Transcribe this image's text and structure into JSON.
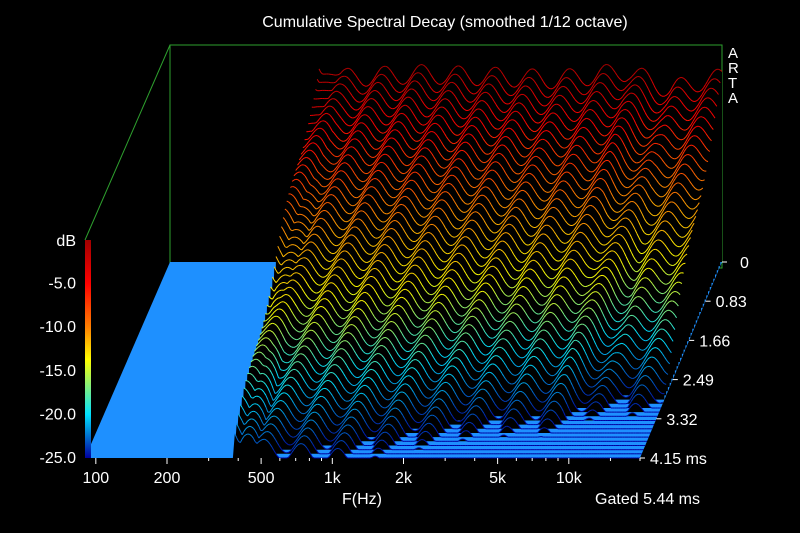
{
  "chart_data": {
    "type": "waterfall",
    "title": "Cumulative Spectral Decay (smoothed 1/12 octave)",
    "brand": "ARTA",
    "xlabel": "F(Hz)",
    "x_tick_labels": [
      "100",
      "200",
      "500",
      "1k",
      "2k",
      "5k",
      "10k"
    ],
    "x_tick_values": [
      100,
      200,
      500,
      1000,
      2000,
      5000,
      10000
    ],
    "xlim": [
      90,
      20000
    ],
    "x_scale": "log",
    "ylabel": "dB",
    "y_tick_labels": [
      "-5.0",
      "-10.0",
      "-15.0",
      "-20.0",
      "-25.0"
    ],
    "y_tick_values": [
      -5,
      -10,
      -15,
      -20,
      -25
    ],
    "ylim": [
      -25,
      0
    ],
    "z_tick_labels": [
      "0",
      "0.83",
      "1.66",
      "2.49",
      "3.32",
      "4.15 ms"
    ],
    "z_tick_values": [
      0,
      0.83,
      1.66,
      2.49,
      3.32,
      4.15
    ],
    "zlim": [
      0,
      4.15
    ],
    "gated_label": "Gated 5.44 ms",
    "colormap": [
      "#0000a0",
      "#00e0ff",
      "#ffff00",
      "#ff8000",
      "#ff0000",
      "#a00000"
    ],
    "floor_color": "#1e90ff",
    "frame_color": "#2ea02e",
    "slices": 48,
    "base_response_db": [
      {
        "f": 380,
        "db": -1.0
      },
      {
        "f": 500,
        "db": -2.0
      },
      {
        "f": 1000,
        "db": -1.5
      },
      {
        "f": 2000,
        "db": -1.8
      },
      {
        "f": 4000,
        "db": -2.2
      },
      {
        "f": 8000,
        "db": -1.2
      },
      {
        "f": 12000,
        "db": -3.5
      },
      {
        "f": 16000,
        "db": -2.5
      },
      {
        "f": 20000,
        "db": -2.0
      }
    ],
    "resonances": [
      {
        "f": 420,
        "level_db": -1.5,
        "decay_ms": 4.15
      },
      {
        "f": 700,
        "level_db": -9.0,
        "decay_ms": 3.3
      },
      {
        "f": 1100,
        "level_db": -10.0,
        "decay_ms": 2.6
      },
      {
        "f": 1500,
        "level_db": -12.0,
        "decay_ms": 2.3
      },
      {
        "f": 3000,
        "level_db": -14.0,
        "decay_ms": 1.8
      },
      {
        "f": 6500,
        "level_db": -13.0,
        "decay_ms": 1.8
      },
      {
        "f": 8000,
        "level_db": -14.0,
        "decay_ms": 1.5
      }
    ]
  }
}
